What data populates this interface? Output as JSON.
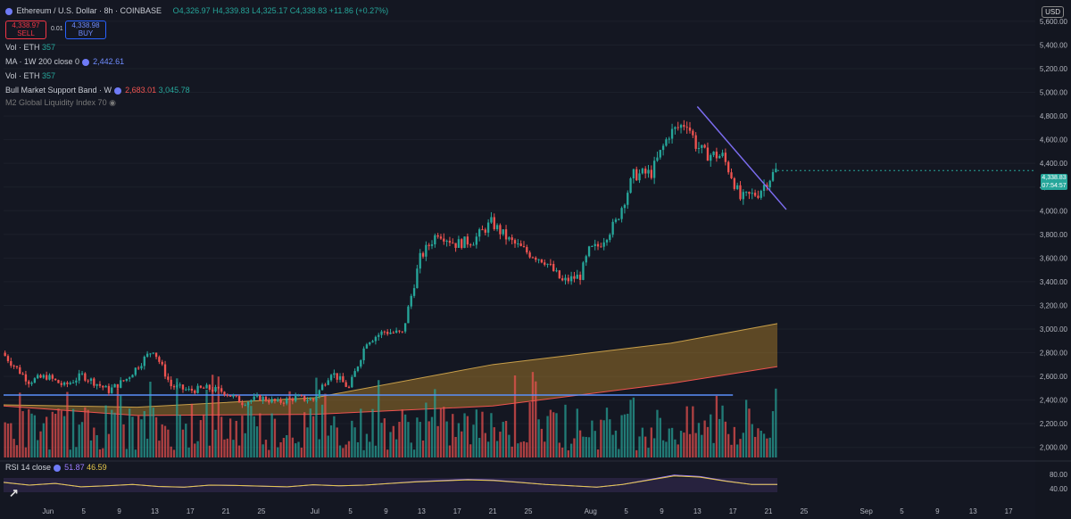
{
  "header": {
    "symbol": "Ethereum / U.S. Dollar · 8h · COINBASE",
    "ohlc": "O4,326.97 H4,339.83 L4,325.17 C4,338.83 +11.86 (+0.27%)",
    "currency": "USD"
  },
  "trade": {
    "sell_price": "4,338.97",
    "sell_label": "SELL",
    "spread": "0.01",
    "buy_price": "4,338.98",
    "buy_label": "BUY"
  },
  "indicators": [
    {
      "name": "Vol · ETH",
      "value": "357",
      "color": "#26a69a"
    },
    {
      "name": "MA · 1W 200 close 0",
      "value": "2,442.61",
      "color": "#6f8cff"
    },
    {
      "name": "Vol · ETH",
      "value": "357",
      "color": "#26a69a"
    },
    {
      "name": "Bull Market Support Band · W",
      "value": "2,683.01",
      "value2": "3,045.78",
      "color": "#ef5350",
      "color2": "#26a69a"
    },
    {
      "name": "M2 Global Liquidity Index 70",
      "value": "",
      "color": "#777"
    }
  ],
  "rsi": {
    "label": "RSI 14 close",
    "value1": "51.87",
    "value2": "46.59",
    "ticks": [
      "80.00",
      "40.00"
    ]
  },
  "last_price": {
    "price": "4,338.83",
    "countdown": "07:54:57"
  },
  "colors": {
    "up": "#26a69a",
    "down": "#ef5350",
    "ma": "#5b8ff9",
    "band": "#b5862b"
  },
  "chart_data": {
    "type": "candlestick",
    "y_ticks": [
      "5,600.00",
      "5,400.00",
      "5,200.00",
      "5,000.00",
      "4,800.00",
      "4,600.00",
      "4,400.00",
      "4,200.00",
      "4,000.00",
      "3,800.00",
      "3,600.00",
      "3,400.00",
      "3,200.00",
      "3,000.00",
      "2,800.00",
      "2,600.00",
      "2,400.00",
      "2,200.00",
      "2,000.00"
    ],
    "y_tick_values": [
      5600,
      5400,
      5200,
      5000,
      4800,
      4600,
      4400,
      4200,
      4000,
      3800,
      3600,
      3400,
      3200,
      3000,
      2800,
      2600,
      2400,
      2200,
      2000
    ],
    "ylim": [
      1900,
      5750
    ],
    "x_ticks": [
      "Jun",
      "5",
      "9",
      "13",
      "17",
      "21",
      "25",
      "Jul",
      "5",
      "9",
      "13",
      "17",
      "21",
      "25",
      "Aug",
      "5",
      "9",
      "13",
      "17",
      "21",
      "25",
      "Sep",
      "5",
      "9",
      "13",
      "17"
    ],
    "x_tick_days": [
      0,
      4,
      8,
      12,
      16,
      20,
      24,
      30,
      34,
      38,
      42,
      46,
      50,
      54,
      61,
      65,
      69,
      73,
      77,
      81,
      85,
      92,
      96,
      100,
      104,
      108
    ],
    "xlim_days": [
      -5,
      111
    ],
    "price_path_days": [
      -5,
      -2,
      0,
      2,
      4,
      7,
      9,
      11,
      12,
      14,
      16,
      18,
      20,
      22,
      24,
      26,
      28,
      30,
      32,
      34,
      36,
      38,
      40,
      42,
      44,
      46,
      48,
      50,
      52,
      54,
      56,
      58,
      60,
      61,
      62,
      64,
      66,
      68,
      70,
      72,
      73,
      74,
      76,
      77,
      78,
      80,
      81,
      82
    ],
    "price_path_values": [
      2800,
      2560,
      2600,
      2520,
      2610,
      2480,
      2580,
      2750,
      2830,
      2520,
      2480,
      2500,
      2470,
      2380,
      2420,
      2380,
      2420,
      2400,
      2640,
      2500,
      2900,
      2980,
      2960,
      3600,
      3820,
      3720,
      3750,
      3900,
      3750,
      3650,
      3580,
      3400,
      3450,
      3660,
      3700,
      3900,
      4300,
      4320,
      4650,
      4750,
      4560,
      4480,
      4460,
      4300,
      4100,
      4150,
      4250,
      4338.83
    ],
    "ma_level": 2442.61,
    "band_days": [
      -5,
      10,
      30,
      50,
      70,
      82
    ],
    "band_lower": [
      2350,
      2270,
      2280,
      2350,
      2540,
      2683.01
    ],
    "band_upper": [
      2360,
      2340,
      2420,
      2700,
      2880,
      3045.78
    ],
    "trendline_days": [
      73,
      83
    ],
    "trendline_values": [
      4880,
      4010
    ],
    "rsi_values": [
      58,
      50,
      55,
      45,
      48,
      52,
      46,
      44,
      50,
      49,
      47,
      45,
      51,
      48,
      50,
      55,
      60,
      63,
      66,
      64,
      58,
      52,
      48,
      44,
      52,
      65,
      78,
      74,
      62,
      52,
      51.87
    ]
  }
}
